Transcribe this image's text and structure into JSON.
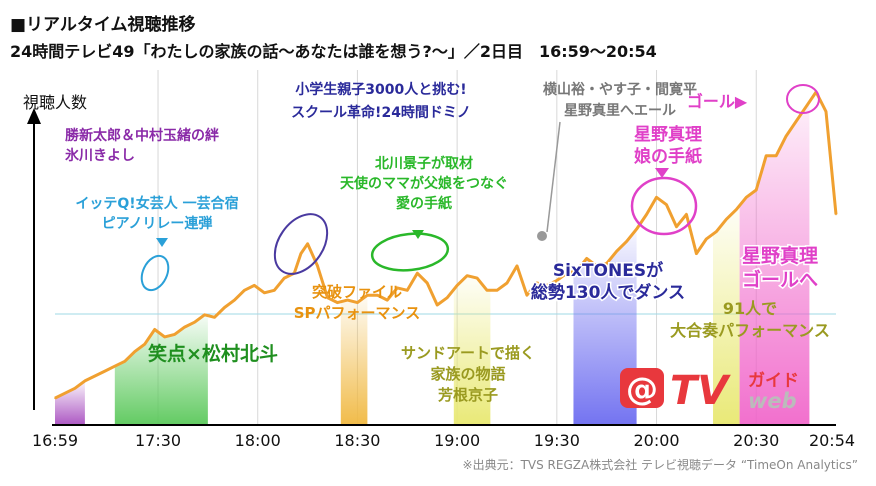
{
  "header": {
    "title": "■リアルタイム視聴推移",
    "subtitle": "24時間テレビ49「わたしの家族の話〜あなたは誰を想う?〜」／2日目　16:59〜20:54"
  },
  "source": "※出典元：TVS REGZA株式会社 テレビ視聴データ “TimeOn Analytics”",
  "logo": {
    "mark": "@",
    "text": "TV",
    "ja": "ガイド",
    "web": "web"
  },
  "colors": {
    "line": "#f0a030",
    "purple": "#a84fc0",
    "green": "#5ac85a",
    "orange": "#f0b840",
    "blue": "#6c6cf0",
    "yellow": "#f0ee70",
    "pink": "#f060c8",
    "cyan": "#2aa0d8",
    "lightgreen": "#2ab82a",
    "navy": "#2a2a9a",
    "olive": "#a0a030",
    "red": "#e02020"
  },
  "chart_data": {
    "type": "line",
    "ylabel": "視聴人数",
    "x_ticks": [
      "16:59",
      "17:30",
      "18:00",
      "18:30",
      "19:00",
      "19:30",
      "20:00",
      "20:30",
      "20:54"
    ],
    "x_tick_minutes": [
      0,
      31,
      61,
      91,
      121,
      151,
      181,
      211,
      235
    ],
    "series": [
      {
        "minutes": [
          0,
          3,
          6,
          9,
          12,
          15,
          18,
          21,
          24,
          27,
          30,
          33,
          36,
          39,
          42,
          45,
          48,
          51,
          54,
          57,
          60,
          63,
          66,
          69,
          72,
          74,
          76,
          79,
          82,
          85,
          88,
          91,
          94,
          97,
          100,
          103,
          106,
          109,
          112,
          115,
          118,
          121,
          124,
          127,
          130,
          133,
          136,
          139,
          142,
          145,
          148,
          151,
          154,
          157,
          160,
          163,
          166,
          169,
          172,
          175,
          178,
          181,
          184,
          187,
          190,
          193,
          196,
          199,
          202,
          205,
          208,
          211,
          214,
          217,
          220,
          223,
          226,
          229,
          232,
          235
        ],
        "values": [
          11,
          13,
          15,
          18,
          20,
          22,
          24,
          26,
          30,
          33,
          39,
          36,
          37,
          40,
          42,
          45,
          44,
          48,
          51,
          55,
          57,
          54,
          55,
          60,
          62,
          70,
          74,
          65,
          52,
          50,
          51,
          50,
          53,
          53,
          51,
          56,
          55,
          62,
          58,
          49,
          52,
          57,
          61,
          60,
          55,
          55,
          58,
          65,
          53,
          58,
          57,
          59,
          62,
          63,
          68,
          65,
          66,
          71,
          75,
          80,
          86,
          93,
          90,
          81,
          86,
          70,
          76,
          79,
          84,
          88,
          93,
          96,
          110,
          110,
          118,
          124,
          130,
          136,
          128,
          86
        ]
      }
    ],
    "bands": [
      {
        "start": 0,
        "end": 9,
        "color": "purple",
        "label": "",
        "label_lines": []
      },
      {
        "start": 18,
        "end": 46,
        "color": "green",
        "label": "笑点×松村北斗",
        "label_lines": [
          "笑点×松村北斗"
        ]
      },
      {
        "start": 86,
        "end": 94,
        "color": "orange",
        "label": "",
        "label_lines": []
      },
      {
        "start": 120,
        "end": 131,
        "color": "yellow",
        "label": "",
        "label_lines": []
      },
      {
        "start": 156,
        "end": 175,
        "color": "blue",
        "label": "",
        "label_lines": []
      },
      {
        "start": 198,
        "end": 206,
        "color": "yellow",
        "label": "",
        "label_lines": []
      },
      {
        "start": 206,
        "end": 227,
        "color": "pink",
        "label": "",
        "label_lines": []
      }
    ],
    "annotations": [
      {
        "lines": [
          "勝新太郎＆中村玉緒の絆",
          "氷川きよし"
        ],
        "color": "purple"
      },
      {
        "lines": [
          "イッテQ!女芸人 一芸合宿",
          "ピアノリレー連弾"
        ],
        "color": "cyan"
      },
      {
        "lines": [
          "小学生親子3000人と挑む!",
          "スクール革命!24時間ドミノ"
        ],
        "color": "navy"
      },
      {
        "lines": [
          "突破ファイル",
          "SPパフォーマンス"
        ],
        "color": "orange"
      },
      {
        "lines": [
          "北川景子が取材",
          "天使のママが父娘をつなぐ",
          "愛の手紙"
        ],
        "color": "lightgreen"
      },
      {
        "lines": [
          "サンドアートで描く",
          "家族の物語",
          "芳根京子"
        ],
        "color": "olive"
      },
      {
        "lines": [
          "横山裕・やす子・間寛平",
          "星野真里へエール"
        ],
        "color": "gray"
      },
      {
        "lines": [
          "SixTONESが",
          "総勢130人でダンス"
        ],
        "color": "navy"
      },
      {
        "lines": [
          "星野真理",
          "娘の手紙"
        ],
        "color": "pink"
      },
      {
        "lines": [
          "91人で",
          "大合奏パフォーマンス"
        ],
        "color": "olive"
      },
      {
        "lines": [
          "ゴール▶"
        ],
        "color": "pink"
      },
      {
        "lines": [
          "星野真理",
          "ゴールへ"
        ],
        "color": "pink"
      }
    ]
  }
}
